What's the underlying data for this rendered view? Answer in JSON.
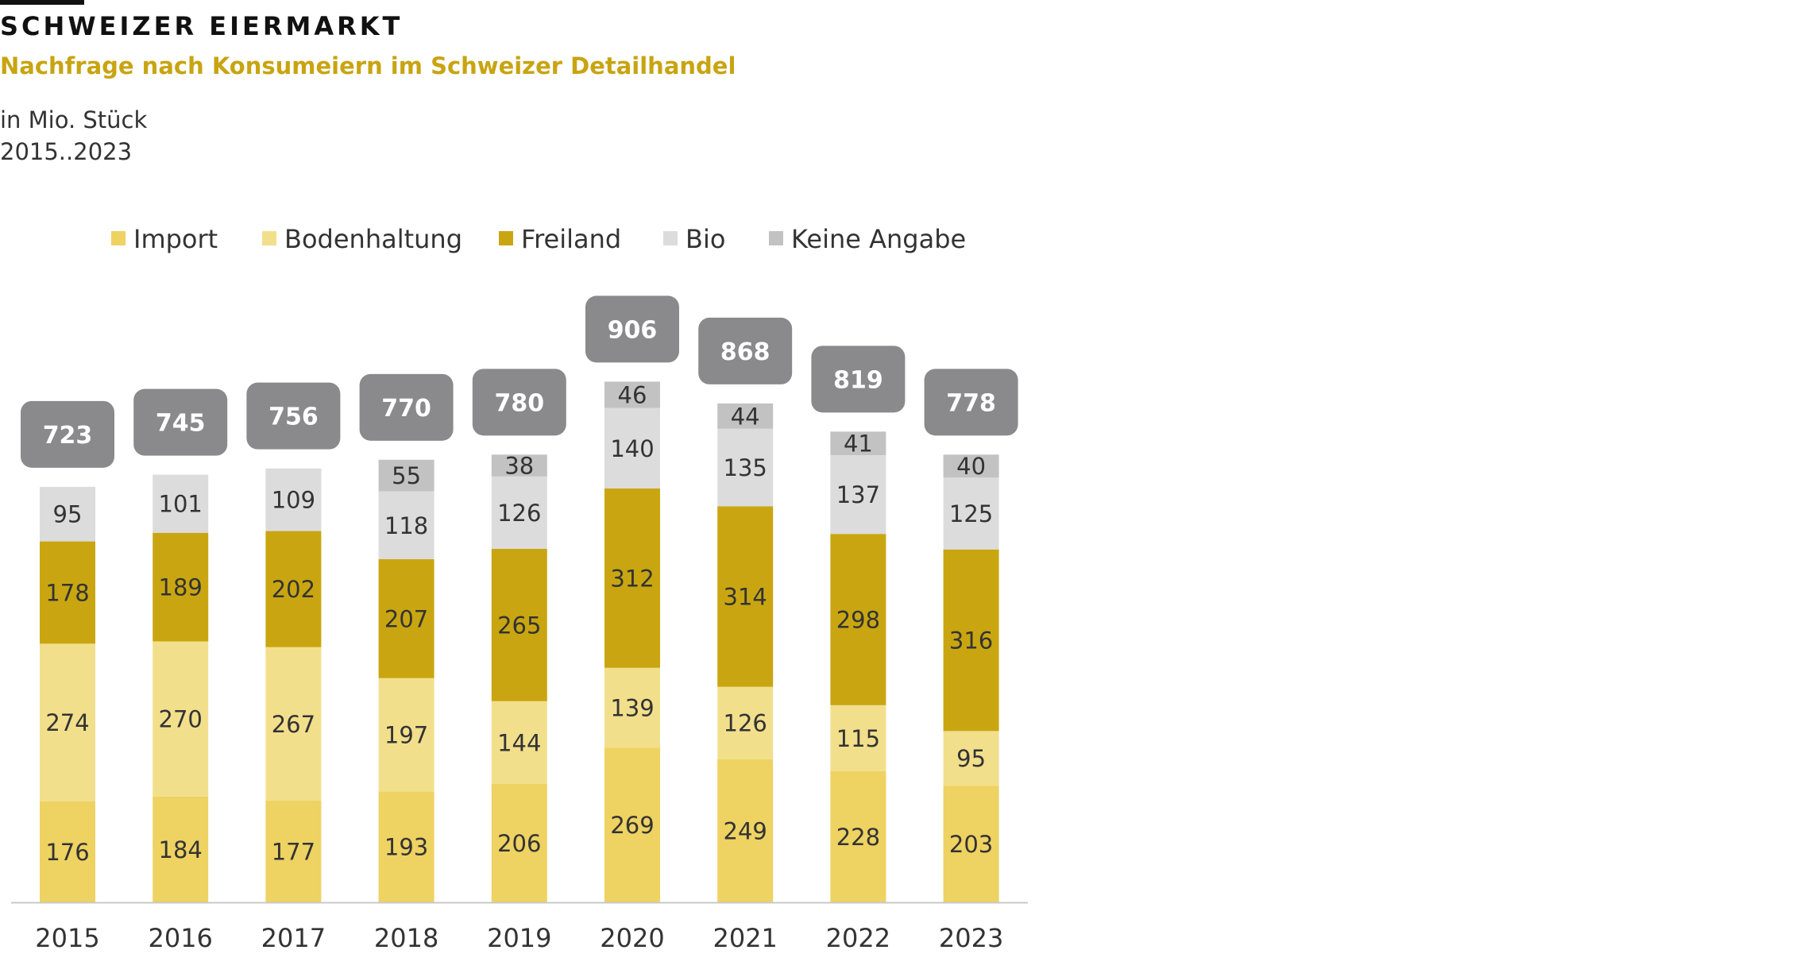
{
  "header": {
    "title": "SCHWEIZER EIERMARKT",
    "subtitle": "Nachfrage nach Konsumeiern im Schweizer Detailhandel",
    "unit": "in Mio. Stück",
    "period": "2015..2023"
  },
  "chart_data": {
    "type": "bar",
    "stacked": true,
    "title": "Nachfrage nach Konsumeiern im Schweizer Detailhandel",
    "xlabel": "",
    "ylabel": "in Mio. Stück",
    "ylim": [
      0,
      1000
    ],
    "grid": false,
    "legend_position": "top-left",
    "categories": [
      "2015",
      "2016",
      "2017",
      "2018",
      "2019",
      "2020",
      "2021",
      "2022",
      "2023"
    ],
    "series": [
      {
        "name": "Import",
        "color": "#eed262",
        "values": [
          176,
          184,
          177,
          193,
          206,
          269,
          249,
          228,
          203
        ]
      },
      {
        "name": "Bodenhaltung",
        "color": "#f2df8b",
        "values": [
          274,
          270,
          267,
          197,
          144,
          139,
          126,
          115,
          95
        ]
      },
      {
        "name": "Freiland",
        "color": "#c9a611",
        "values": [
          178,
          189,
          202,
          207,
          265,
          312,
          314,
          298,
          316
        ]
      },
      {
        "name": "Bio",
        "color": "#dcdcdc",
        "values": [
          95,
          101,
          109,
          118,
          126,
          140,
          135,
          137,
          125
        ]
      },
      {
        "name": "Keine Angabe",
        "color": "#c2c2c2",
        "values": [
          null,
          null,
          null,
          55,
          38,
          46,
          44,
          41,
          40
        ]
      }
    ],
    "totals": [
      723,
      745,
      756,
      770,
      780,
      906,
      868,
      819,
      778
    ],
    "total_badge_color": "#8a8a8c"
  }
}
